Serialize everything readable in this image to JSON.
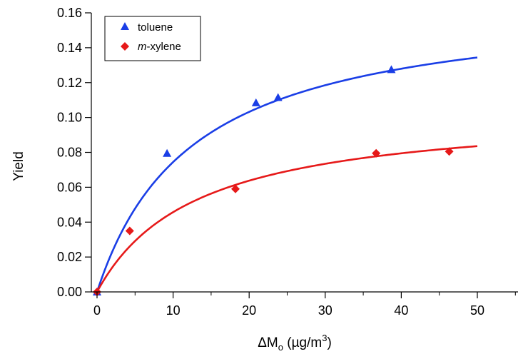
{
  "chart_data": {
    "type": "scatter",
    "xlabel_main": "ΔM",
    "xlabel_sub": "o",
    "xlabel_tail": " (µg/m",
    "xlabel_sup": "3",
    "xlabel_close": ")",
    "ylabel": "Yield",
    "xlim": [
      0,
      56
    ],
    "ylim": [
      0,
      0.16
    ],
    "xticks": [
      0,
      10,
      20,
      30,
      40,
      50
    ],
    "xtick_labels": [
      "0",
      "10",
      "20",
      "30",
      "40",
      "50"
    ],
    "yticks": [
      0,
      0.02,
      0.04,
      0.06,
      0.08,
      0.1,
      0.12,
      0.14,
      0.16
    ],
    "ytick_labels": [
      "0.00",
      "0.02",
      "0.04",
      "0.06",
      "0.08",
      "0.10",
      "0.12",
      "0.14",
      "0.16"
    ],
    "grid": false,
    "legend_position": "top-left",
    "series": [
      {
        "name": "toluene",
        "name_italic_prefix": "",
        "name_rest": "toluene",
        "marker": "triangle",
        "color": "#1a3ee6",
        "points": [
          [
            0,
            0
          ],
          [
            9.2,
            0.0795
          ],
          [
            20.9,
            0.1085
          ],
          [
            23.8,
            0.1115
          ],
          [
            38.7,
            0.1275
          ]
        ],
        "fit": {
          "ymax": 0.1683,
          "k": 0.0793,
          "x_range": [
            0,
            50
          ]
        }
      },
      {
        "name": "m-xylene",
        "name_italic_prefix": "m",
        "name_rest": "-xylene",
        "marker": "diamond",
        "color": "#e61919",
        "points": [
          [
            0,
            0
          ],
          [
            4.3,
            0.035
          ],
          [
            18.2,
            0.059
          ],
          [
            36.7,
            0.0795
          ],
          [
            46.3,
            0.0805
          ]
        ],
        "fit": {
          "ymax": 0.1054,
          "k": 0.0766,
          "x_range": [
            0,
            50
          ]
        }
      }
    ]
  }
}
